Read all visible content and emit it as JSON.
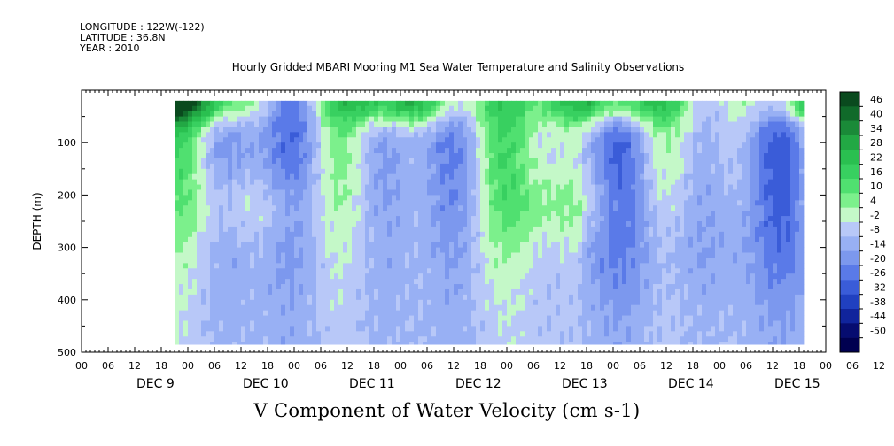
{
  "header": {
    "longitude": "LONGITUDE : 122W(-122)",
    "latitude": "LATITUDE : 36.8N",
    "year": "YEAR : 2010"
  },
  "chart_data": {
    "type": "heatmap",
    "title": "Hourly Gridded MBARI Mooring M1 Sea Water Temperature and Salinity Observations",
    "xlabel": "V Component of Water Velocity (cm s-1)",
    "ylabel": "DEPTH (m)",
    "ylim": [
      500,
      0
    ],
    "y_ticks": [
      100,
      200,
      300,
      400,
      500
    ],
    "y_data_range": [
      20,
      485
    ],
    "x_hour_ticks": [
      "00",
      "06",
      "12",
      "18",
      "00",
      "06",
      "12",
      "18",
      "00",
      "06",
      "12",
      "18",
      "00",
      "06",
      "12",
      "18",
      "00",
      "06",
      "12",
      "18",
      "00",
      "06",
      "12",
      "18",
      "00",
      "06",
      "12",
      "18",
      "00",
      "06",
      "12",
      "18"
    ],
    "x_day_labels": [
      "DEC 9",
      "DEC 10",
      "DEC 11",
      "DEC 12",
      "DEC 13",
      "DEC 14",
      "DEC 15"
    ],
    "x_range_hours": [
      -18,
      150
    ],
    "x_data_range_hours": [
      3,
      145
    ],
    "colorbar": {
      "levels": [
        46,
        40,
        34,
        28,
        22,
        16,
        10,
        4,
        -2,
        -8,
        -14,
        -20,
        -26,
        -32,
        -38,
        -44,
        -50
      ],
      "colors": [
        "#0a4a1e",
        "#106a2a",
        "#1a8a38",
        "#22a844",
        "#2ac050",
        "#38d060",
        "#50e070",
        "#7cf08c",
        "#c4f8c8",
        "#b8c8f8",
        "#98b0f4",
        "#7c98ee",
        "#5a7ae8",
        "#3a5cd8",
        "#2040c0",
        "#10249c",
        "#060c70",
        "#000050"
      ]
    },
    "field_range": [
      -30,
      46
    ],
    "field_description": "V velocity shallow 20-60m strongly positive (dark green), alternating positive/negative columns at depth"
  }
}
